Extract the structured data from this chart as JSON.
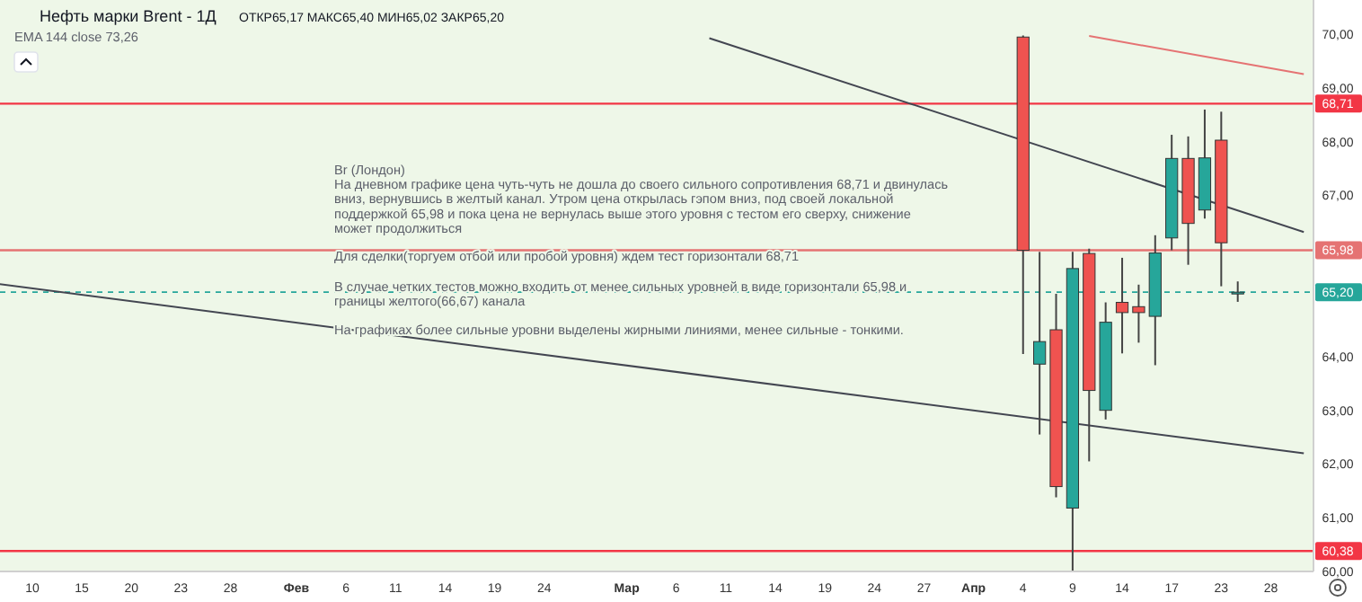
{
  "chart_data": {
    "type": "candlestick",
    "title": "Нефть марки Brent - 1Д",
    "subtitle": "ОТКР65,17 МАКС65,40 МИН65,02 ЗАКР65,20",
    "categories": [
      null,
      null,
      "10",
      null,
      null,
      "15",
      null,
      null,
      "20",
      null,
      null,
      "23",
      null,
      null,
      "28",
      null,
      null,
      null,
      "Фев",
      null,
      null,
      "6",
      null,
      null,
      "11",
      null,
      null,
      "14",
      null,
      null,
      "19",
      null,
      null,
      "24",
      null,
      null,
      null,
      null,
      "Мар",
      null,
      null,
      "6",
      null,
      null,
      "11",
      null,
      null,
      "14",
      null,
      null,
      "19",
      null,
      null,
      "24",
      null,
      null,
      "27",
      null,
      null,
      "Апр",
      null,
      null,
      "4",
      null,
      null,
      "9",
      null,
      null,
      "14",
      null,
      null,
      "17",
      null,
      null,
      "23",
      null,
      null,
      "28",
      null,
      null
    ],
    "ohlc": [
      null,
      null,
      null,
      null,
      null,
      null,
      null,
      null,
      null,
      null,
      null,
      null,
      null,
      null,
      null,
      null,
      null,
      null,
      null,
      null,
      null,
      null,
      null,
      null,
      null,
      null,
      null,
      null,
      null,
      null,
      null,
      null,
      null,
      null,
      null,
      null,
      null,
      null,
      null,
      null,
      null,
      null,
      null,
      null,
      null,
      null,
      null,
      null,
      null,
      null,
      null,
      null,
      null,
      null,
      null,
      null,
      null,
      null,
      null,
      null,
      null,
      null,
      [
        69.95,
        69.98,
        64.05,
        65.98
      ],
      [
        63.86,
        65.95,
        62.55,
        64.28
      ],
      [
        64.5,
        65.17,
        61.38,
        61.58
      ],
      [
        61.18,
        65.95,
        60.0,
        65.64
      ],
      [
        65.92,
        66.01,
        62.05,
        63.37
      ],
      [
        63.0,
        65.01,
        62.83,
        64.64
      ],
      [
        65.01,
        65.84,
        64.06,
        64.82
      ],
      [
        64.93,
        65.34,
        64.26,
        64.82
      ],
      [
        64.75,
        66.26,
        63.84,
        65.93
      ],
      [
        66.21,
        68.13,
        65.98,
        67.69
      ],
      [
        67.69,
        68.1,
        65.71,
        66.48
      ],
      [
        66.73,
        68.6,
        66.57,
        67.7
      ],
      [
        68.03,
        68.56,
        65.31,
        66.12
      ],
      [
        65.17,
        65.4,
        65.02,
        65.2
      ],
      null,
      null,
      null,
      null
    ],
    "series": [
      {
        "type": "line",
        "color": "#434651",
        "values": [
          null,
          null,
          null,
          null,
          null,
          null,
          null,
          null,
          null,
          null,
          null,
          null,
          null,
          null,
          null,
          null,
          null,
          null,
          null,
          null,
          null,
          null,
          null,
          null,
          null,
          null,
          null,
          null,
          null,
          null,
          null,
          null,
          null,
          null,
          null,
          null,
          null,
          null,
          null,
          null,
          null,
          null,
          null,
          69.93,
          null,
          null,
          null,
          null,
          null,
          null,
          null,
          null,
          null,
          null,
          null,
          null,
          null,
          null,
          null,
          null,
          null,
          null,
          null,
          null,
          null,
          null,
          null,
          null,
          null,
          null,
          null,
          null,
          null,
          null,
          null,
          null,
          null,
          null,
          null,
          66.32
        ]
      },
      {
        "type": "line",
        "color": "#434651",
        "values": [
          65.35,
          null,
          null,
          null,
          null,
          null,
          null,
          null,
          null,
          null,
          null,
          null,
          null,
          null,
          null,
          null,
          null,
          null,
          null,
          null,
          null,
          null,
          null,
          null,
          null,
          null,
          null,
          null,
          null,
          null,
          null,
          null,
          null,
          null,
          null,
          null,
          null,
          null,
          null,
          null,
          null,
          null,
          null,
          null,
          null,
          null,
          null,
          null,
          null,
          null,
          null,
          null,
          null,
          null,
          null,
          null,
          null,
          null,
          null,
          null,
          null,
          null,
          null,
          null,
          null,
          null,
          null,
          null,
          null,
          null,
          null,
          null,
          null,
          null,
          null,
          null,
          null,
          null,
          null,
          62.2
        ]
      },
      {
        "type": "line",
        "color": "#e57373",
        "values": [
          null,
          null,
          null,
          null,
          null,
          null,
          null,
          null,
          null,
          null,
          null,
          null,
          null,
          null,
          null,
          null,
          null,
          null,
          null,
          null,
          null,
          null,
          null,
          null,
          null,
          null,
          null,
          null,
          null,
          null,
          null,
          null,
          null,
          null,
          null,
          null,
          null,
          null,
          null,
          null,
          null,
          null,
          null,
          null,
          null,
          null,
          null,
          null,
          null,
          null,
          null,
          null,
          null,
          null,
          null,
          null,
          null,
          null,
          null,
          null,
          null,
          null,
          null,
          null,
          null,
          null,
          69.97,
          null,
          null,
          null,
          null,
          null,
          null,
          null,
          null,
          null,
          null,
          null,
          null,
          69.26
        ]
      }
    ],
    "ylim": [
      60,
      70.64
    ],
    "yticks": [
      {
        "value": 60,
        "label": "60,00"
      },
      {
        "value": 61,
        "label": "61,00"
      },
      {
        "value": 62,
        "label": "62,00"
      },
      {
        "value": 63,
        "label": "63,00"
      },
      {
        "value": 64,
        "label": "64,00"
      },
      {
        "value": 67,
        "label": "67,00"
      },
      {
        "value": 68,
        "label": "68,00"
      },
      {
        "value": 69,
        "label": "69,00"
      },
      {
        "value": 70,
        "label": "70,00"
      }
    ],
    "ref_lines": [
      {
        "axis": "y",
        "value": 68.71,
        "label": "68,71",
        "color": "#f23645"
      },
      {
        "axis": "y",
        "value": 65.98,
        "label": "65,98",
        "color": "#e57373"
      },
      {
        "axis": "y",
        "value": 60.38,
        "label": "60,38",
        "color": "#f23645"
      },
      {
        "axis": "y",
        "value": 65.2,
        "label": "65,20",
        "color": "#26a69a",
        "line_style": "dashed"
      }
    ],
    "annotations": [
      "EMA 144 close 73,26",
      "Br (Лондон)",
      "На дневном графике цена чуть-чуть не дошла до своего сильного сопротивления 68,71 и двинулась\nвниз, вернувшись в желтый канал. Утром цена открылась гэпом вниз, под своей локальной\nподдержкой 65,98 и пока цена не вернулась выше этого уровня с тестом его сверху, снижение\nможет продолжиться",
      "Для сделки(торгуем отбой или пробой уровня) ждем тест горизонтали 68,71",
      "В случае четких тестов можно входить от менее сильных уровней в виде горизонтали 65,98 и\nграницы желтого(66,67) канала",
      "На графиках более сильные уровни выделены жирными линиями, менее сильные - тонкими."
    ]
  }
}
